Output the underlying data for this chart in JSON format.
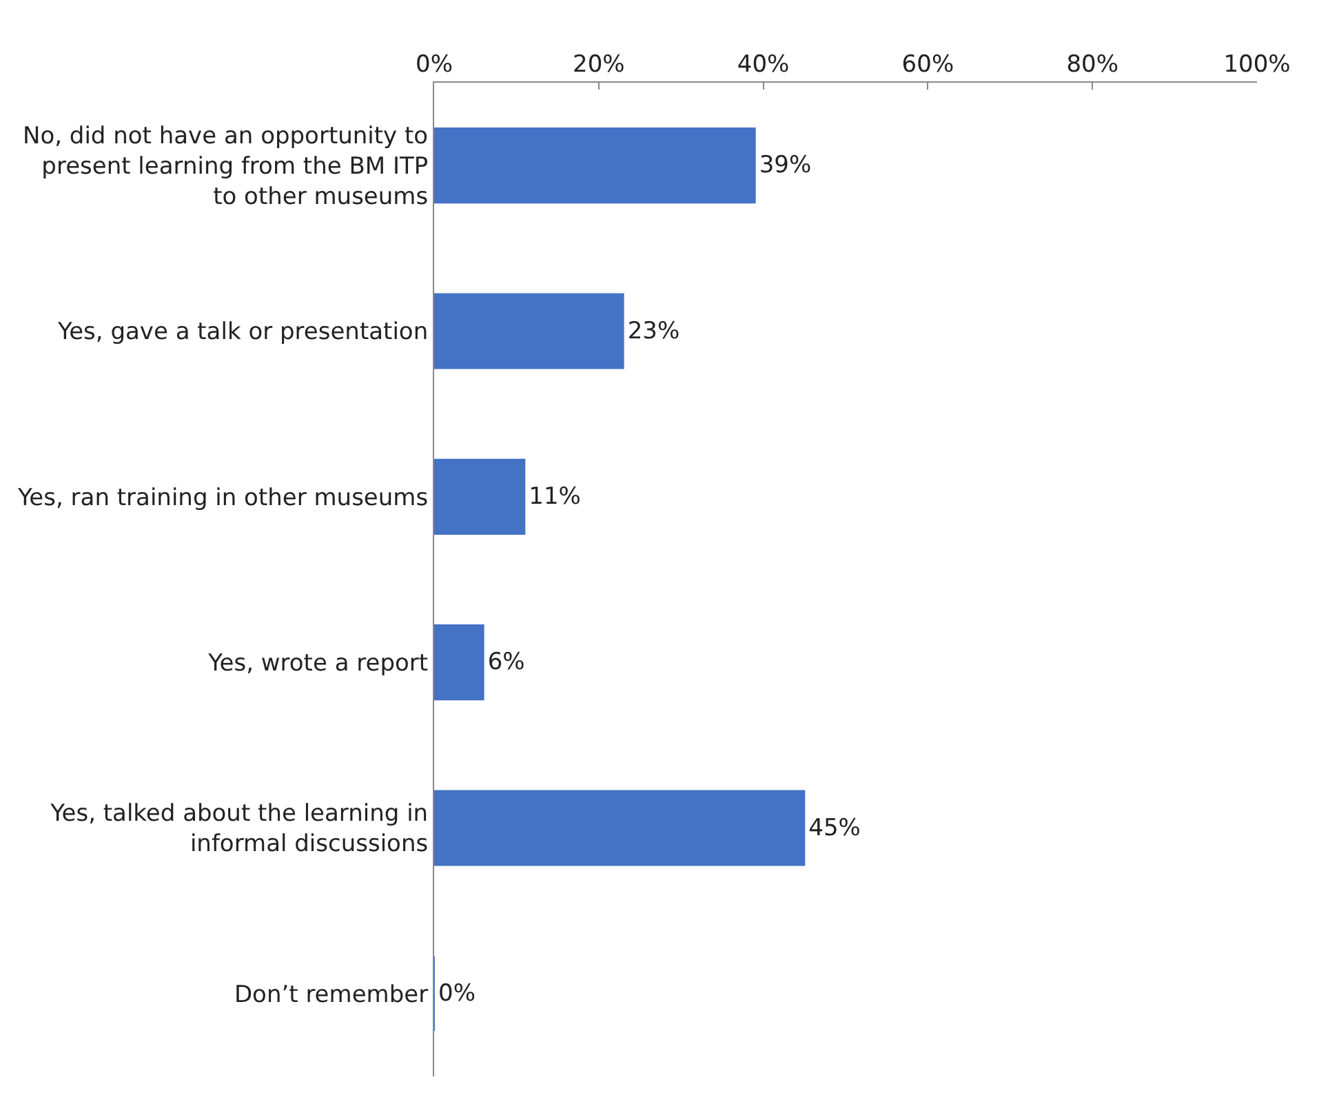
{
  "chart_data": {
    "type": "bar",
    "orientation": "horizontal",
    "categories": [
      "No, did not have an opportunity to present learning from the BM ITP to other museums",
      "Yes, gave a talk or presentation",
      "Yes, ran training in other museums",
      "Yes, wrote a report",
      "Yes, talked about the learning in informal discussions",
      "Don’t remember"
    ],
    "values": [
      39,
      23,
      11,
      6,
      45,
      0
    ],
    "value_labels": [
      "39%",
      "23%",
      "11%",
      "6%",
      "45%",
      "0%"
    ],
    "color": "#4472c4",
    "xlim": [
      0,
      100
    ],
    "xticks": [
      {
        "value": 0,
        "label": "0%"
      },
      {
        "value": 20,
        "label": "20%"
      },
      {
        "value": 40,
        "label": "40%"
      },
      {
        "value": 60,
        "label": "60%"
      },
      {
        "value": 80,
        "label": "80%"
      },
      {
        "value": 100,
        "label": "100%"
      }
    ]
  }
}
